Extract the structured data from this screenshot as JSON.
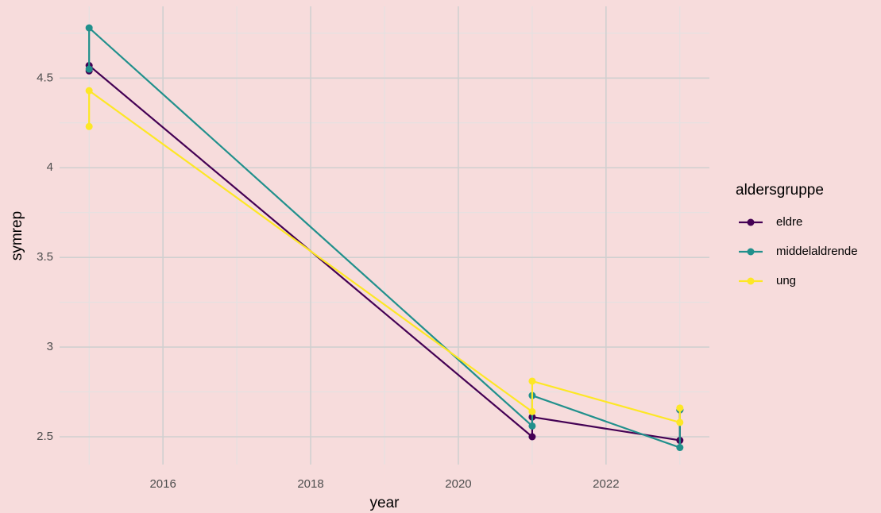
{
  "chart_data": {
    "type": "line",
    "x_label": "year",
    "y_label": "symrep",
    "legend_title": "aldersgruppe",
    "legend_position": "right",
    "x": [
      2015,
      2015,
      2021,
      2021,
      2023,
      2023
    ],
    "series": [
      {
        "name": "eldre",
        "color": "#440154",
        "values": [
          4.54,
          4.57,
          2.5,
          2.61,
          2.48,
          2.65
        ]
      },
      {
        "name": "middelaldrende",
        "color": "#21908c",
        "values": [
          4.55,
          4.78,
          2.56,
          2.73,
          2.44,
          2.65
        ]
      },
      {
        "name": "ung",
        "color": "#fde725",
        "values": [
          4.23,
          4.43,
          2.64,
          2.81,
          2.58,
          2.66
        ]
      }
    ],
    "xlim": [
      2014.6,
      2023.4
    ],
    "xticks": [
      2016,
      2018,
      2020,
      2022
    ],
    "ylim": [
      2.345,
      4.9
    ],
    "yticks": [
      2.5,
      3.0,
      3.5,
      4.0,
      4.5
    ],
    "grid": true
  }
}
